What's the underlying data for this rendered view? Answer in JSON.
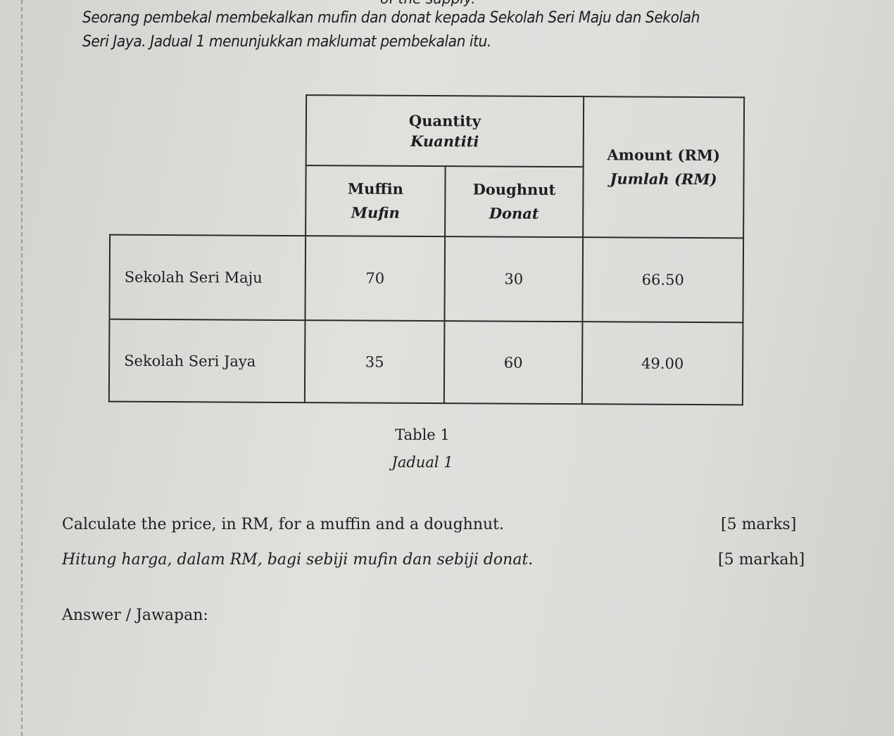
{
  "intro": {
    "cut_line": "of the supply.",
    "line1": "Seorang pembekal membekalkan mufin dan donat kepada Sekolah Seri Maju dan Sekolah",
    "line2": "Seri Jaya. Jadual 1 menunjukkan maklumat pembekalan itu."
  },
  "table": {
    "quantity_en": "Quantity",
    "quantity_ms": "Kuantiti",
    "muffin_en": "Muffin",
    "muffin_ms": "Mufin",
    "doughnut_en": "Doughnut",
    "doughnut_ms": "Donat",
    "amount_en": "Amount (RM)",
    "amount_ms": "Jumlah (RM)",
    "rows": [
      {
        "school": "Sekolah Seri Maju",
        "muffin": "70",
        "doughnut": "30",
        "amount": "66.50"
      },
      {
        "school": "Sekolah Seri Jaya",
        "muffin": "35",
        "doughnut": "60",
        "amount": "49.00"
      }
    ]
  },
  "caption": {
    "en": "Table 1",
    "ms": "Jadual 1"
  },
  "question": {
    "en": "Calculate the price, in RM, for a muffin and a doughnut.",
    "en_marks": "[5 marks]",
    "ms": "Hitung harga, dalam RM, bagi sebiji mufin dan sebiji donat.",
    "ms_marks": "[5 markah]",
    "answer_label": "Answer / Jawapan:"
  }
}
